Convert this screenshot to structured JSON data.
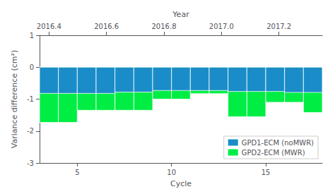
{
  "chart_data": {
    "type": "bar",
    "xlabel": "Cycle",
    "ylabel": "Variance difference (cm²)",
    "x2label": "Year",
    "x": [
      3,
      4,
      5,
      6,
      7,
      8,
      9,
      10,
      11,
      12,
      13,
      14,
      15,
      16,
      17
    ],
    "series": [
      {
        "name": "GPD1-ECM (noMWR)",
        "color": "#1a8dc8",
        "values": [
          -0.82,
          -0.82,
          -0.82,
          -0.82,
          -0.78,
          -0.78,
          -0.73,
          -0.73,
          -0.73,
          -0.73,
          -0.76,
          -0.76,
          -0.76,
          -0.79,
          -0.79
        ]
      },
      {
        "name": "GPD2-ECM (MWR)",
        "color": "#00ee44",
        "values": [
          -1.73,
          -1.73,
          -1.35,
          -1.35,
          -1.35,
          -1.35,
          -1.0,
          -1.0,
          -0.83,
          -0.83,
          -1.55,
          -1.55,
          -1.1,
          -1.1,
          -1.42
        ]
      }
    ],
    "xlim": [
      3,
      18
    ],
    "xticks": [
      5,
      10,
      15
    ],
    "x2lim": [
      3,
      18
    ],
    "x2ticks": [
      {
        "value": 3.5,
        "label": "2016.4"
      },
      {
        "value": 6.55,
        "label": "2016.6"
      },
      {
        "value": 9.6,
        "label": "2016.8"
      },
      {
        "value": 12.65,
        "label": "2017.0"
      },
      {
        "value": 15.7,
        "label": "2017.2"
      }
    ],
    "ylim": [
      -3,
      1
    ],
    "yticks": [
      -3,
      -2,
      -1,
      0,
      1
    ],
    "grid": false,
    "legend": "lower right"
  }
}
